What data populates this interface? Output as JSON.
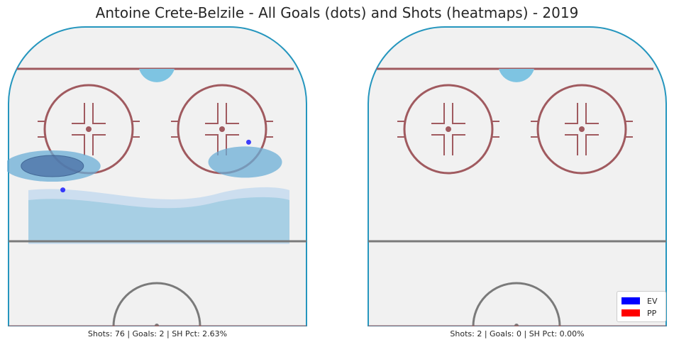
{
  "figure": {
    "title": "Antoine Crete-Belzile - All Goals (dots) and Shots (heatmaps) - 2019"
  },
  "colors": {
    "ice": "#f1f1f1",
    "boards": "#2596be",
    "red_line": "#a05a5f",
    "blue_line": "#7a7a7a",
    "crease": "#7ec4e2",
    "ev": "#0000ff",
    "pp": "#ff0000"
  },
  "legend": {
    "items": [
      {
        "label": "EV",
        "color": "#0000ff"
      },
      {
        "label": "PP",
        "color": "#ff0000"
      }
    ]
  },
  "chart_data": [
    {
      "type": "scatter",
      "panel": "left",
      "caption": "Shots: 76 | Goals: 2 | SH Pct: 2.63%",
      "shots": 76,
      "goals": 2,
      "sh_pct": "2.63%",
      "goal_points": [
        {
          "x": -27,
          "y": 59,
          "situation": "EV"
        },
        {
          "x": 26,
          "y": 71,
          "situation": "EV"
        }
      ],
      "shot_density": [
        {
          "x": -30,
          "y": 65,
          "level": 3
        },
        {
          "x": 25,
          "y": 66,
          "level": 2
        }
      ],
      "xlim": [
        -42.5,
        42.5
      ],
      "ylim": [
        25,
        100
      ]
    },
    {
      "type": "scatter",
      "panel": "right",
      "caption": "Shots: 2 | Goals: 0 | SH Pct: 0.00%",
      "shots": 2,
      "goals": 0,
      "sh_pct": "0.00%",
      "goal_points": [],
      "shot_density": [],
      "xlim": [
        -42.5,
        42.5
      ],
      "ylim": [
        25,
        100
      ]
    }
  ]
}
